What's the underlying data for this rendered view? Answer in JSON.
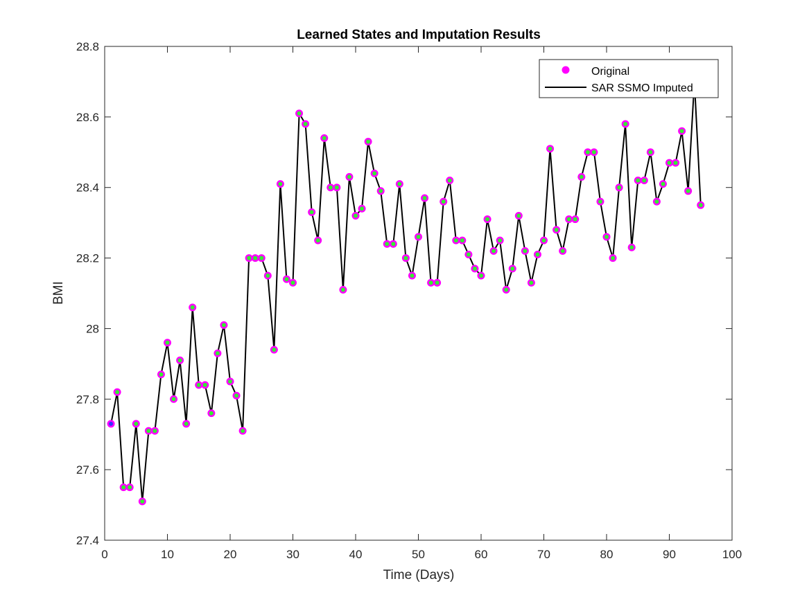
{
  "chart_data": {
    "type": "line",
    "title": "Learned States and Imputation Results",
    "xlabel": "Time (Days)",
    "ylabel": "BMI",
    "xlim": [
      0,
      100
    ],
    "ylim": [
      27.4,
      28.8
    ],
    "xticks": [
      0,
      10,
      20,
      30,
      40,
      50,
      60,
      70,
      80,
      90,
      100
    ],
    "xtick_labels": [
      "0",
      "10",
      "20",
      "30",
      "40",
      "50",
      "60",
      "70",
      "80",
      "90",
      "100"
    ],
    "yticks": [
      27.4,
      27.6,
      27.8,
      28.0,
      28.2,
      28.4,
      28.6,
      28.8
    ],
    "ytick_labels": [
      "27.4",
      "27.6",
      "27.8",
      "28",
      "28.2",
      "28.4",
      "28.6",
      "28.8"
    ],
    "grid": false,
    "legend_position": "top-right",
    "series": [
      {
        "name": "Original",
        "style": "markers",
        "color": "#ff00ff",
        "inner_color": "#33ee33",
        "first_point_inner_color": "#3333ff"
      },
      {
        "name": "SAR SSMO Imputed",
        "style": "line",
        "color": "#000000"
      }
    ],
    "x": [
      1,
      2,
      3,
      4,
      5,
      6,
      7,
      8,
      9,
      10,
      11,
      12,
      13,
      14,
      15,
      16,
      17,
      18,
      19,
      20,
      21,
      22,
      23,
      24,
      25,
      26,
      27,
      28,
      29,
      30,
      31,
      32,
      33,
      34,
      35,
      36,
      37,
      38,
      39,
      40,
      41,
      42,
      43,
      44,
      45,
      46,
      47,
      48,
      49,
      50,
      51,
      52,
      53,
      54,
      55,
      56,
      57,
      58,
      59,
      60,
      61,
      62,
      63,
      64,
      65,
      66,
      67,
      68,
      69,
      70,
      71,
      72,
      73,
      74,
      75,
      76,
      77,
      78,
      79,
      80,
      81,
      82,
      83,
      84,
      85,
      86,
      87,
      88,
      89,
      90,
      91,
      92,
      93,
      94,
      95
    ],
    "values": [
      27.73,
      27.82,
      27.55,
      27.55,
      27.73,
      27.51,
      27.71,
      27.71,
      27.87,
      27.96,
      27.8,
      27.91,
      27.73,
      28.06,
      27.84,
      27.84,
      27.76,
      27.93,
      28.01,
      27.85,
      27.81,
      27.71,
      28.2,
      28.2,
      28.2,
      28.15,
      27.94,
      28.41,
      28.14,
      28.13,
      28.61,
      28.58,
      28.33,
      28.25,
      28.54,
      28.4,
      28.4,
      28.11,
      28.43,
      28.32,
      28.34,
      28.53,
      28.44,
      28.39,
      28.24,
      28.24,
      28.41,
      28.2,
      28.15,
      28.26,
      28.37,
      28.13,
      28.13,
      28.36,
      28.42,
      28.25,
      28.25,
      28.21,
      28.17,
      28.15,
      28.31,
      28.22,
      28.25,
      28.11,
      28.17,
      28.32,
      28.22,
      28.13,
      28.21,
      28.25,
      28.51,
      28.28,
      28.22,
      28.31,
      28.31,
      28.43,
      28.5,
      28.5,
      28.36,
      28.26,
      28.2,
      28.4,
      28.58,
      28.23,
      28.42,
      28.42,
      28.5,
      28.36,
      28.41,
      28.47,
      28.47,
      28.56,
      28.39,
      28.7,
      28.35
    ]
  }
}
